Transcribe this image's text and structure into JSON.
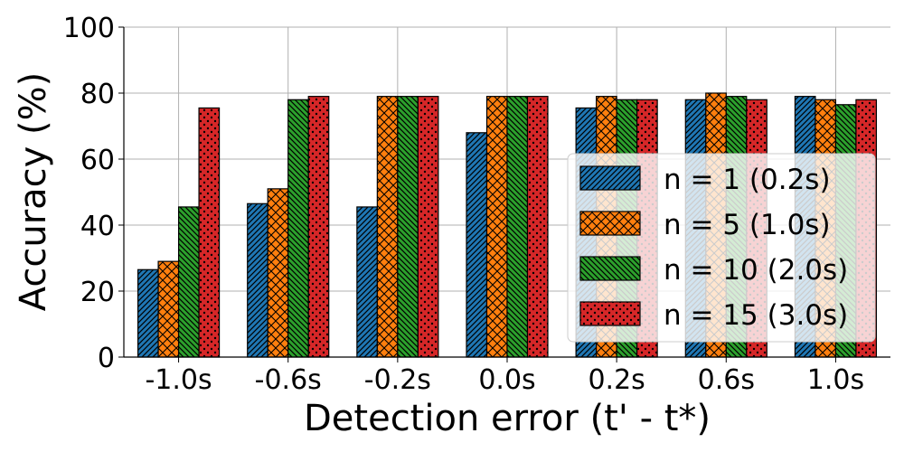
{
  "chart_data": {
    "type": "bar",
    "categories": [
      "-1.0s",
      "-0.6s",
      "-0.2s",
      "0.0s",
      "0.2s",
      "0.6s",
      "1.0s"
    ],
    "series": [
      {
        "name": "n = 1 (0.2s)",
        "values": [
          26.5,
          46.5,
          45.5,
          68,
          75.5,
          78,
          79
        ],
        "color": "#1f77b4",
        "hatch": "diagonal"
      },
      {
        "name": "n = 5 (1.0s)",
        "values": [
          29,
          51,
          79,
          79,
          79,
          80,
          78
        ],
        "color": "#ff7f0e",
        "hatch": "crosshatch"
      },
      {
        "name": "n = 10 (2.0s)",
        "values": [
          45.5,
          78,
          79,
          79,
          78,
          79,
          76.5
        ],
        "color": "#2ca02c",
        "hatch": "backslash"
      },
      {
        "name": "n = 15 (3.0s)",
        "values": [
          75.5,
          79,
          79,
          79,
          78,
          78,
          78
        ],
        "color": "#d62728",
        "hatch": "dots"
      }
    ],
    "xlabel": "Detection error (t' - t*)",
    "ylabel": "Accuracy (%)",
    "ylim": [
      0,
      100
    ],
    "yticks": [
      0,
      20,
      40,
      60,
      80,
      100
    ],
    "grid": true,
    "legend_position": "center-right"
  }
}
